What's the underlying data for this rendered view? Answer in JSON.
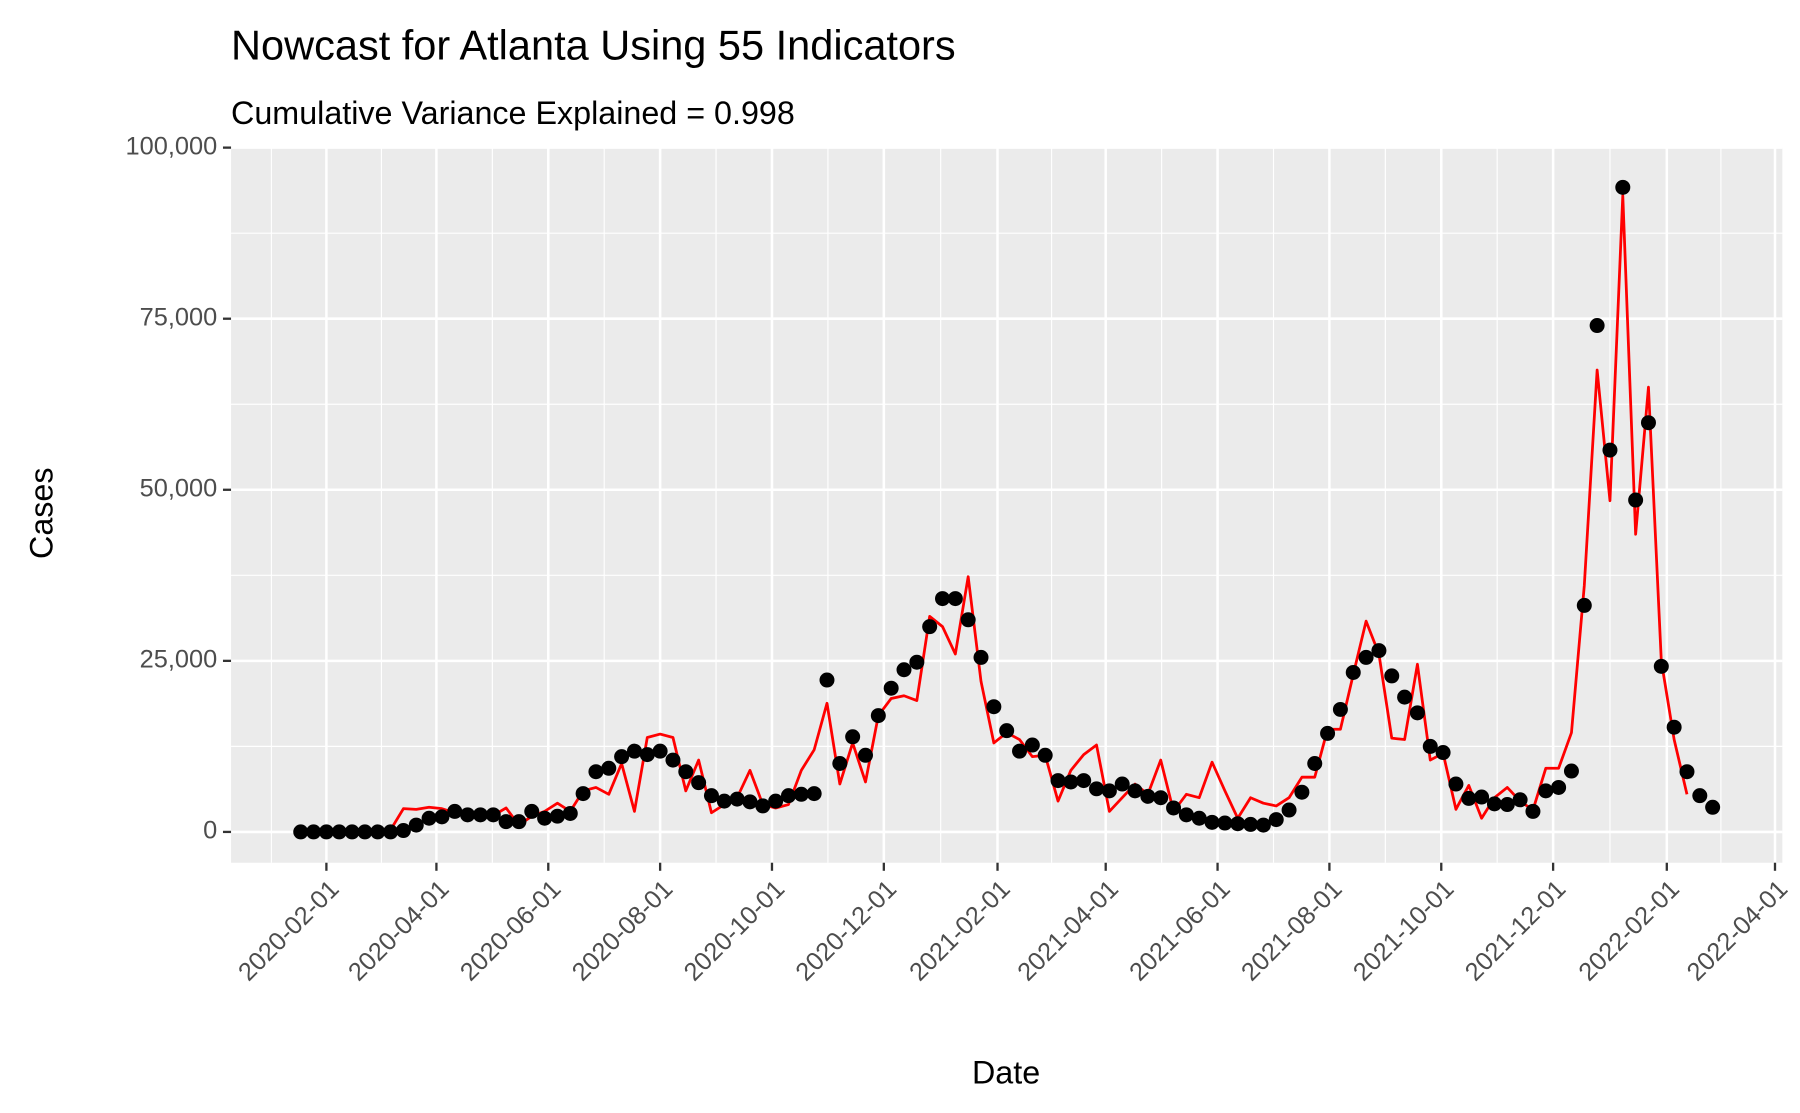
{
  "chart_data": {
    "type": "line",
    "title": "Nowcast for Atlanta Using 55 Indicators",
    "subtitle": "Cumulative Variance Explained = 0.998",
    "x_label": "Date",
    "y_label": "Cases",
    "x": [
      "2020-01-18",
      "2020-01-25",
      "2020-02-01",
      "2020-02-08",
      "2020-02-15",
      "2020-02-22",
      "2020-02-29",
      "2020-03-07",
      "2020-03-14",
      "2020-03-21",
      "2020-03-28",
      "2020-04-04",
      "2020-04-11",
      "2020-04-18",
      "2020-04-25",
      "2020-05-02",
      "2020-05-09",
      "2020-05-16",
      "2020-05-23",
      "2020-05-30",
      "2020-06-06",
      "2020-06-13",
      "2020-06-20",
      "2020-06-27",
      "2020-07-04",
      "2020-07-11",
      "2020-07-18",
      "2020-07-25",
      "2020-08-01",
      "2020-08-08",
      "2020-08-15",
      "2020-08-22",
      "2020-08-29",
      "2020-09-05",
      "2020-09-12",
      "2020-09-19",
      "2020-09-26",
      "2020-10-03",
      "2020-10-10",
      "2020-10-17",
      "2020-10-24",
      "2020-10-31",
      "2020-11-07",
      "2020-11-14",
      "2020-11-21",
      "2020-11-28",
      "2020-12-05",
      "2020-12-12",
      "2020-12-19",
      "2020-12-26",
      "2021-01-02",
      "2021-01-09",
      "2021-01-16",
      "2021-01-23",
      "2021-01-30",
      "2021-02-06",
      "2021-02-13",
      "2021-02-20",
      "2021-02-27",
      "2021-03-06",
      "2021-03-13",
      "2021-03-20",
      "2021-03-27",
      "2021-04-03",
      "2021-04-10",
      "2021-04-17",
      "2021-04-24",
      "2021-05-01",
      "2021-05-08",
      "2021-05-15",
      "2021-05-22",
      "2021-05-29",
      "2021-06-05",
      "2021-06-12",
      "2021-06-19",
      "2021-06-26",
      "2021-07-03",
      "2021-07-10",
      "2021-07-17",
      "2021-07-24",
      "2021-07-31",
      "2021-08-07",
      "2021-08-14",
      "2021-08-21",
      "2021-08-28",
      "2021-09-04",
      "2021-09-11",
      "2021-09-18",
      "2021-09-25",
      "2021-10-02",
      "2021-10-09",
      "2021-10-16",
      "2021-10-23",
      "2021-10-30",
      "2021-11-06",
      "2021-11-13",
      "2021-11-20",
      "2021-11-27",
      "2021-12-04",
      "2021-12-11",
      "2021-12-18",
      "2021-12-25",
      "2022-01-01",
      "2022-01-08",
      "2022-01-15",
      "2022-01-22",
      "2022-01-29",
      "2022-02-05",
      "2022-02-12",
      "2022-02-19",
      "2022-02-26"
    ],
    "series": [
      {
        "mark": "point",
        "color": "#000000",
        "values": [
          0,
          0,
          0,
          0,
          0,
          0,
          0,
          0,
          200,
          1000,
          2000,
          2200,
          3000,
          2500,
          2500,
          2500,
          1500,
          1500,
          3000,
          2000,
          2300,
          2700,
          5600,
          8800,
          9300,
          11000,
          11800,
          11300,
          11800,
          10500,
          8800,
          7200,
          5300,
          4500,
          4800,
          4400,
          3800,
          4500,
          5300,
          5500,
          5600,
          22200,
          10000,
          13900,
          11200,
          17000,
          21000,
          23700,
          24800,
          30000,
          34100,
          34100,
          31000,
          25500,
          18300,
          14800,
          11800,
          12700,
          11200,
          7500,
          7300,
          7500,
          6300,
          6000,
          7000,
          6000,
          5200,
          5000,
          3500,
          2500,
          2000,
          1400,
          1300,
          1200,
          1100,
          1000,
          1800,
          3200,
          5800,
          10000,
          14400,
          17900,
          23300,
          25500,
          26500,
          22800,
          19700,
          17400,
          12500,
          11600,
          7000,
          4900,
          5100,
          4100,
          4000,
          4700,
          3000,
          6000,
          6500,
          8900,
          33100,
          74000,
          55800,
          94200,
          48500,
          59800,
          24200,
          15300,
          8800,
          5300,
          3600
        ]
      },
      {
        "mark": "line",
        "color": "#ff0000",
        "values": [
          0,
          0,
          0,
          0,
          0,
          0,
          0,
          300,
          3400,
          3300,
          3600,
          3400,
          2800,
          2900,
          2600,
          2400,
          3500,
          1000,
          2300,
          3000,
          4200,
          3000,
          6000,
          6500,
          5500,
          10000,
          3000,
          13800,
          14300,
          13800,
          6000,
          10500,
          2800,
          4000,
          5000,
          9000,
          4000,
          3500,
          4000,
          9000,
          12000,
          18800,
          7000,
          13000,
          7300,
          17000,
          19500,
          19900,
          19200,
          31500,
          30000,
          26000,
          37300,
          22000,
          13000,
          14500,
          13500,
          11000,
          11200,
          4500,
          9000,
          11300,
          12700,
          3000,
          5000,
          7000,
          5500,
          10500,
          3000,
          5500,
          5000,
          10200,
          6000,
          2000,
          5000,
          4200,
          3800,
          5000,
          8000,
          8000,
          15000,
          15000,
          23000,
          30800,
          26000,
          13700,
          13500,
          24500,
          10500,
          11500,
          3300,
          6800,
          2000,
          5000,
          6500,
          4500,
          3200,
          9300,
          9300,
          14500,
          36000,
          67500,
          48400,
          93000,
          43500,
          65000,
          25000,
          13500,
          5500,
          null,
          null
        ]
      }
    ],
    "xlim": [
      "2019-12-11",
      "2022-04-05"
    ],
    "xticks": [
      "2020-02-01",
      "2020-04-01",
      "2020-06-01",
      "2020-08-01",
      "2020-10-01",
      "2020-12-01",
      "2021-02-01",
      "2021-04-01",
      "2021-06-01",
      "2021-08-01",
      "2021-10-01",
      "2021-12-01",
      "2022-02-01",
      "2022-04-01"
    ],
    "ylim": [
      -4500,
      100000
    ],
    "yticks": [
      0,
      {
        "value": 25000,
        "label": "25,000"
      },
      {
        "value": 50000,
        "label": "50,000"
      },
      {
        "value": 75000,
        "label": "75,000"
      },
      {
        "value": 100000,
        "label": "100,000"
      }
    ],
    "grid": true,
    "panel_color": "#ebebeb"
  }
}
